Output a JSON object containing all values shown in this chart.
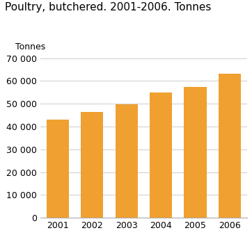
{
  "title": "Poultry, butchered. 2001-2006. Tonnes",
  "ylabel": "Tonnes",
  "categories": [
    "2001",
    "2002",
    "2003",
    "2004",
    "2005",
    "2006"
  ],
  "values": [
    43000,
    46500,
    49800,
    55000,
    57300,
    63300
  ],
  "bar_color": "#F0A030",
  "ylim": [
    0,
    70000
  ],
  "yticks": [
    0,
    10000,
    20000,
    30000,
    40000,
    50000,
    60000,
    70000
  ],
  "background_color": "#ffffff",
  "plot_bg_color": "#ffffff",
  "title_fontsize": 11,
  "axis_fontsize": 9,
  "ylabel_fontsize": 9,
  "grid_color": "#cccccc"
}
